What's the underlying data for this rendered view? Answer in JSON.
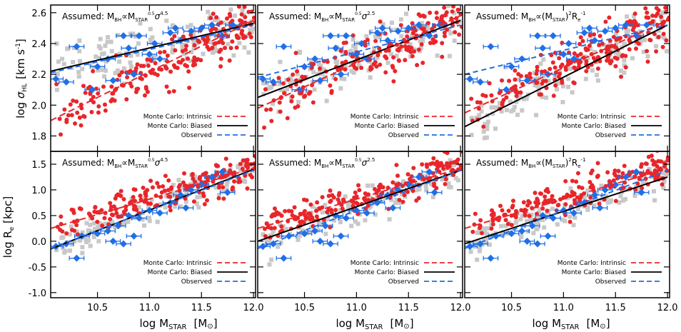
{
  "figure": {
    "xlabel": "log M",
    "xlabel_sub": "STAR",
    "xlabel_unit": "[M",
    "xlabel_unit_close": "]",
    "sun_symbol": "⊙",
    "xticks": [
      "10.5",
      "11.0",
      "11.5",
      "12.0"
    ],
    "xlim": [
      10.05,
      12.02
    ]
  },
  "rows": [
    {
      "ylabel_prefix": "log ",
      "ylabel_symbol": "σ",
      "ylabel_sub": "HL",
      "ylabel_unit": "[km s",
      "ylabel_unit_sup": "-1",
      "ylabel_unit_close": "]",
      "ylim": [
        1.7,
        2.65
      ],
      "yticks": [
        "1.8",
        "2.0",
        "2.2",
        "2.4",
        "2.6"
      ],
      "ytick_values": [
        1.8,
        2.0,
        2.2,
        2.4,
        2.6
      ]
    },
    {
      "ylabel_prefix": "log R",
      "ylabel_sub": "e",
      "ylabel_unit": " [kpc]",
      "ylim": [
        -1.1,
        1.75
      ],
      "yticks": [
        "-1.0",
        "-0.5",
        "0.0",
        "0.5",
        "1.0",
        "1.5"
      ],
      "ytick_values": [
        -1.0,
        -0.5,
        0.0,
        0.5,
        1.0,
        1.5
      ]
    }
  ],
  "annotations": [
    {
      "lead": "Assumed: M",
      "bh": "BH",
      "prop": "∝M",
      "star": "STAR",
      "exp1": "0.5",
      "sym": "σ",
      "exp2": "4.5",
      "tail": ""
    },
    {
      "lead": "Assumed: M",
      "bh": "BH",
      "prop": "∝M",
      "star": "STAR",
      "exp1": "0.5",
      "sym": "σ",
      "exp2": "2.5",
      "tail": ""
    },
    {
      "lead": "Assumed: M",
      "bh": "BH",
      "prop": "∝(M",
      "star": "STAR",
      "exp1": "",
      "sym": ")",
      "exp2": "2",
      "tail": "R",
      "tail_sub": "e",
      "tail_sup": "-1"
    }
  ],
  "legend": [
    {
      "label": "Monte Carlo: Intrinsic",
      "color": "#e8262a",
      "style": "dashed"
    },
    {
      "label": "Monte Carlo: Biased",
      "color": "#000000",
      "style": "solid"
    },
    {
      "label": "Observed",
      "color": "#1f6fe8",
      "style": "dashed"
    }
  ],
  "colors": {
    "observed_points": "#1f6fe8",
    "intrinsic_points": "#e8262a",
    "biased_points": "#c8c8c8"
  },
  "chart_data": [
    {
      "type": "scatter",
      "panel": "top-left",
      "ylim": [
        1.7,
        2.65
      ],
      "lines": {
        "intrinsic": [
          [
            10.05,
            1.9
          ],
          [
            12.0,
            2.55
          ]
        ],
        "biased": [
          [
            10.05,
            2.22
          ],
          [
            12.0,
            2.53
          ]
        ],
        "observed": [
          [
            10.05,
            2.21
          ],
          [
            12.0,
            2.52
          ]
        ]
      },
      "observed_points": [
        [
          10.3,
          2.38
        ],
        [
          10.1,
          2.17
        ],
        [
          10.2,
          2.15
        ],
        [
          10.5,
          2.25
        ],
        [
          10.6,
          2.3
        ],
        [
          10.75,
          2.45
        ],
        [
          10.8,
          2.37
        ],
        [
          10.9,
          2.45
        ],
        [
          11.0,
          2.33
        ],
        [
          11.05,
          2.4
        ],
        [
          11.2,
          2.47
        ],
        [
          11.3,
          2.42
        ],
        [
          11.4,
          2.48
        ],
        [
          11.5,
          2.5
        ],
        [
          11.6,
          2.52
        ],
        [
          11.7,
          2.45
        ],
        [
          11.8,
          2.52
        ],
        [
          10.45,
          2.1
        ],
        [
          10.65,
          2.16
        ],
        [
          10.85,
          2.2
        ],
        [
          11.1,
          2.3
        ],
        [
          11.25,
          2.5
        ]
      ]
    },
    {
      "type": "scatter",
      "panel": "top-middle",
      "ylim": [
        1.7,
        2.65
      ],
      "lines": {
        "intrinsic": [
          [
            10.05,
            1.98
          ],
          [
            12.0,
            2.58
          ]
        ],
        "biased": [
          [
            10.05,
            2.05
          ],
          [
            12.0,
            2.55
          ]
        ],
        "observed": [
          [
            10.05,
            2.18
          ],
          [
            12.0,
            2.52
          ]
        ]
      },
      "observed_points": [
        [
          10.3,
          2.38
        ],
        [
          10.1,
          2.17
        ],
        [
          10.2,
          2.15
        ],
        [
          10.5,
          2.25
        ],
        [
          10.6,
          2.3
        ],
        [
          10.75,
          2.45
        ],
        [
          10.8,
          2.37
        ],
        [
          10.9,
          2.45
        ],
        [
          11.0,
          2.33
        ],
        [
          11.05,
          2.4
        ],
        [
          11.2,
          2.47
        ],
        [
          11.3,
          2.42
        ],
        [
          11.4,
          2.48
        ],
        [
          11.5,
          2.5
        ],
        [
          11.6,
          2.52
        ],
        [
          11.7,
          2.45
        ],
        [
          11.8,
          2.52
        ],
        [
          10.45,
          2.1
        ],
        [
          10.65,
          2.16
        ],
        [
          10.85,
          2.2
        ],
        [
          11.1,
          2.3
        ],
        [
          11.25,
          2.5
        ]
      ]
    },
    {
      "type": "scatter",
      "panel": "top-right",
      "ylim": [
        1.7,
        2.65
      ],
      "lines": {
        "intrinsic": [
          [
            10.05,
            1.95
          ],
          [
            12.0,
            2.55
          ]
        ],
        "biased": [
          [
            10.05,
            1.86
          ],
          [
            12.0,
            2.52
          ]
        ],
        "observed": [
          [
            10.05,
            2.2
          ],
          [
            12.0,
            2.52
          ]
        ]
      },
      "observed_points": [
        [
          10.3,
          2.38
        ],
        [
          10.1,
          2.17
        ],
        [
          10.2,
          2.15
        ],
        [
          10.5,
          2.25
        ],
        [
          10.6,
          2.3
        ],
        [
          10.75,
          2.45
        ],
        [
          10.8,
          2.37
        ],
        [
          10.9,
          2.45
        ],
        [
          11.0,
          2.33
        ],
        [
          11.05,
          2.4
        ],
        [
          11.2,
          2.47
        ],
        [
          11.3,
          2.42
        ],
        [
          11.4,
          2.48
        ],
        [
          11.5,
          2.5
        ],
        [
          11.6,
          2.52
        ],
        [
          11.7,
          2.45
        ],
        [
          11.8,
          2.52
        ],
        [
          10.45,
          2.1
        ],
        [
          10.65,
          2.16
        ],
        [
          10.85,
          2.2
        ],
        [
          11.1,
          2.3
        ],
        [
          11.25,
          2.5
        ]
      ]
    },
    {
      "type": "scatter",
      "panel": "bottom-left",
      "ylim": [
        -1.1,
        1.75
      ],
      "lines": {
        "intrinsic": [
          [
            10.05,
            0.25
          ],
          [
            12.0,
            1.42
          ]
        ],
        "biased": [
          [
            10.05,
            -0.15
          ],
          [
            12.0,
            1.4
          ]
        ],
        "observed": [
          [
            10.05,
            -0.14
          ],
          [
            12.0,
            1.38
          ]
        ]
      },
      "observed_points": [
        [
          10.3,
          -0.33
        ],
        [
          10.1,
          -0.1
        ],
        [
          10.2,
          -0.05
        ],
        [
          10.35,
          0.1
        ],
        [
          10.5,
          0.15
        ],
        [
          10.6,
          0.2
        ],
        [
          10.7,
          0.3
        ],
        [
          10.75,
          -0.05
        ],
        [
          10.8,
          0.5
        ],
        [
          10.9,
          0.45
        ],
        [
          11.0,
          0.6
        ],
        [
          11.1,
          0.55
        ],
        [
          11.2,
          0.75
        ],
        [
          11.3,
          0.9
        ],
        [
          11.4,
          1.0
        ],
        [
          11.5,
          1.1
        ],
        [
          11.6,
          1.25
        ],
        [
          11.7,
          1.35
        ],
        [
          10.65,
          0.0
        ],
        [
          10.85,
          0.1
        ],
        [
          11.35,
          0.65
        ],
        [
          11.75,
          0.95
        ]
      ]
    },
    {
      "type": "scatter",
      "panel": "bottom-middle",
      "ylim": [
        -1.1,
        1.75
      ],
      "lines": {
        "intrinsic": [
          [
            10.05,
            0.25
          ],
          [
            12.0,
            1.42
          ]
        ],
        "biased": [
          [
            10.05,
            0.0
          ],
          [
            12.0,
            1.38
          ]
        ],
        "observed": [
          [
            10.05,
            -0.14
          ],
          [
            12.0,
            1.38
          ]
        ]
      },
      "observed_points": [
        [
          10.3,
          -0.33
        ],
        [
          10.1,
          -0.1
        ],
        [
          10.2,
          -0.05
        ],
        [
          10.35,
          0.1
        ],
        [
          10.5,
          0.15
        ],
        [
          10.6,
          0.2
        ],
        [
          10.7,
          0.3
        ],
        [
          10.75,
          -0.05
        ],
        [
          10.8,
          0.5
        ],
        [
          10.9,
          0.45
        ],
        [
          11.0,
          0.6
        ],
        [
          11.1,
          0.55
        ],
        [
          11.2,
          0.75
        ],
        [
          11.3,
          0.9
        ],
        [
          11.4,
          1.0
        ],
        [
          11.5,
          1.1
        ],
        [
          11.6,
          1.25
        ],
        [
          11.7,
          1.35
        ],
        [
          10.65,
          0.0
        ],
        [
          10.85,
          0.1
        ],
        [
          11.35,
          0.65
        ],
        [
          11.75,
          0.95
        ]
      ]
    },
    {
      "type": "scatter",
      "panel": "bottom-right",
      "ylim": [
        -1.1,
        1.75
      ],
      "lines": {
        "intrinsic": [
          [
            10.05,
            0.25
          ],
          [
            12.0,
            1.42
          ]
        ],
        "biased": [
          [
            10.05,
            -0.05
          ],
          [
            12.0,
            1.25
          ]
        ],
        "observed": [
          [
            10.05,
            -0.14
          ],
          [
            12.0,
            1.38
          ]
        ]
      },
      "observed_points": [
        [
          10.3,
          -0.33
        ],
        [
          10.1,
          -0.1
        ],
        [
          10.2,
          -0.05
        ],
        [
          10.35,
          0.1
        ],
        [
          10.5,
          0.15
        ],
        [
          10.6,
          0.2
        ],
        [
          10.7,
          0.3
        ],
        [
          10.75,
          -0.05
        ],
        [
          10.8,
          0.5
        ],
        [
          10.9,
          0.45
        ],
        [
          11.0,
          0.6
        ],
        [
          11.1,
          0.55
        ],
        [
          11.2,
          0.75
        ],
        [
          11.3,
          0.9
        ],
        [
          11.4,
          1.0
        ],
        [
          11.5,
          1.1
        ],
        [
          11.6,
          1.25
        ],
        [
          11.7,
          1.35
        ],
        [
          10.65,
          0.0
        ],
        [
          10.85,
          0.1
        ],
        [
          11.35,
          0.65
        ],
        [
          11.75,
          0.95
        ]
      ]
    }
  ]
}
